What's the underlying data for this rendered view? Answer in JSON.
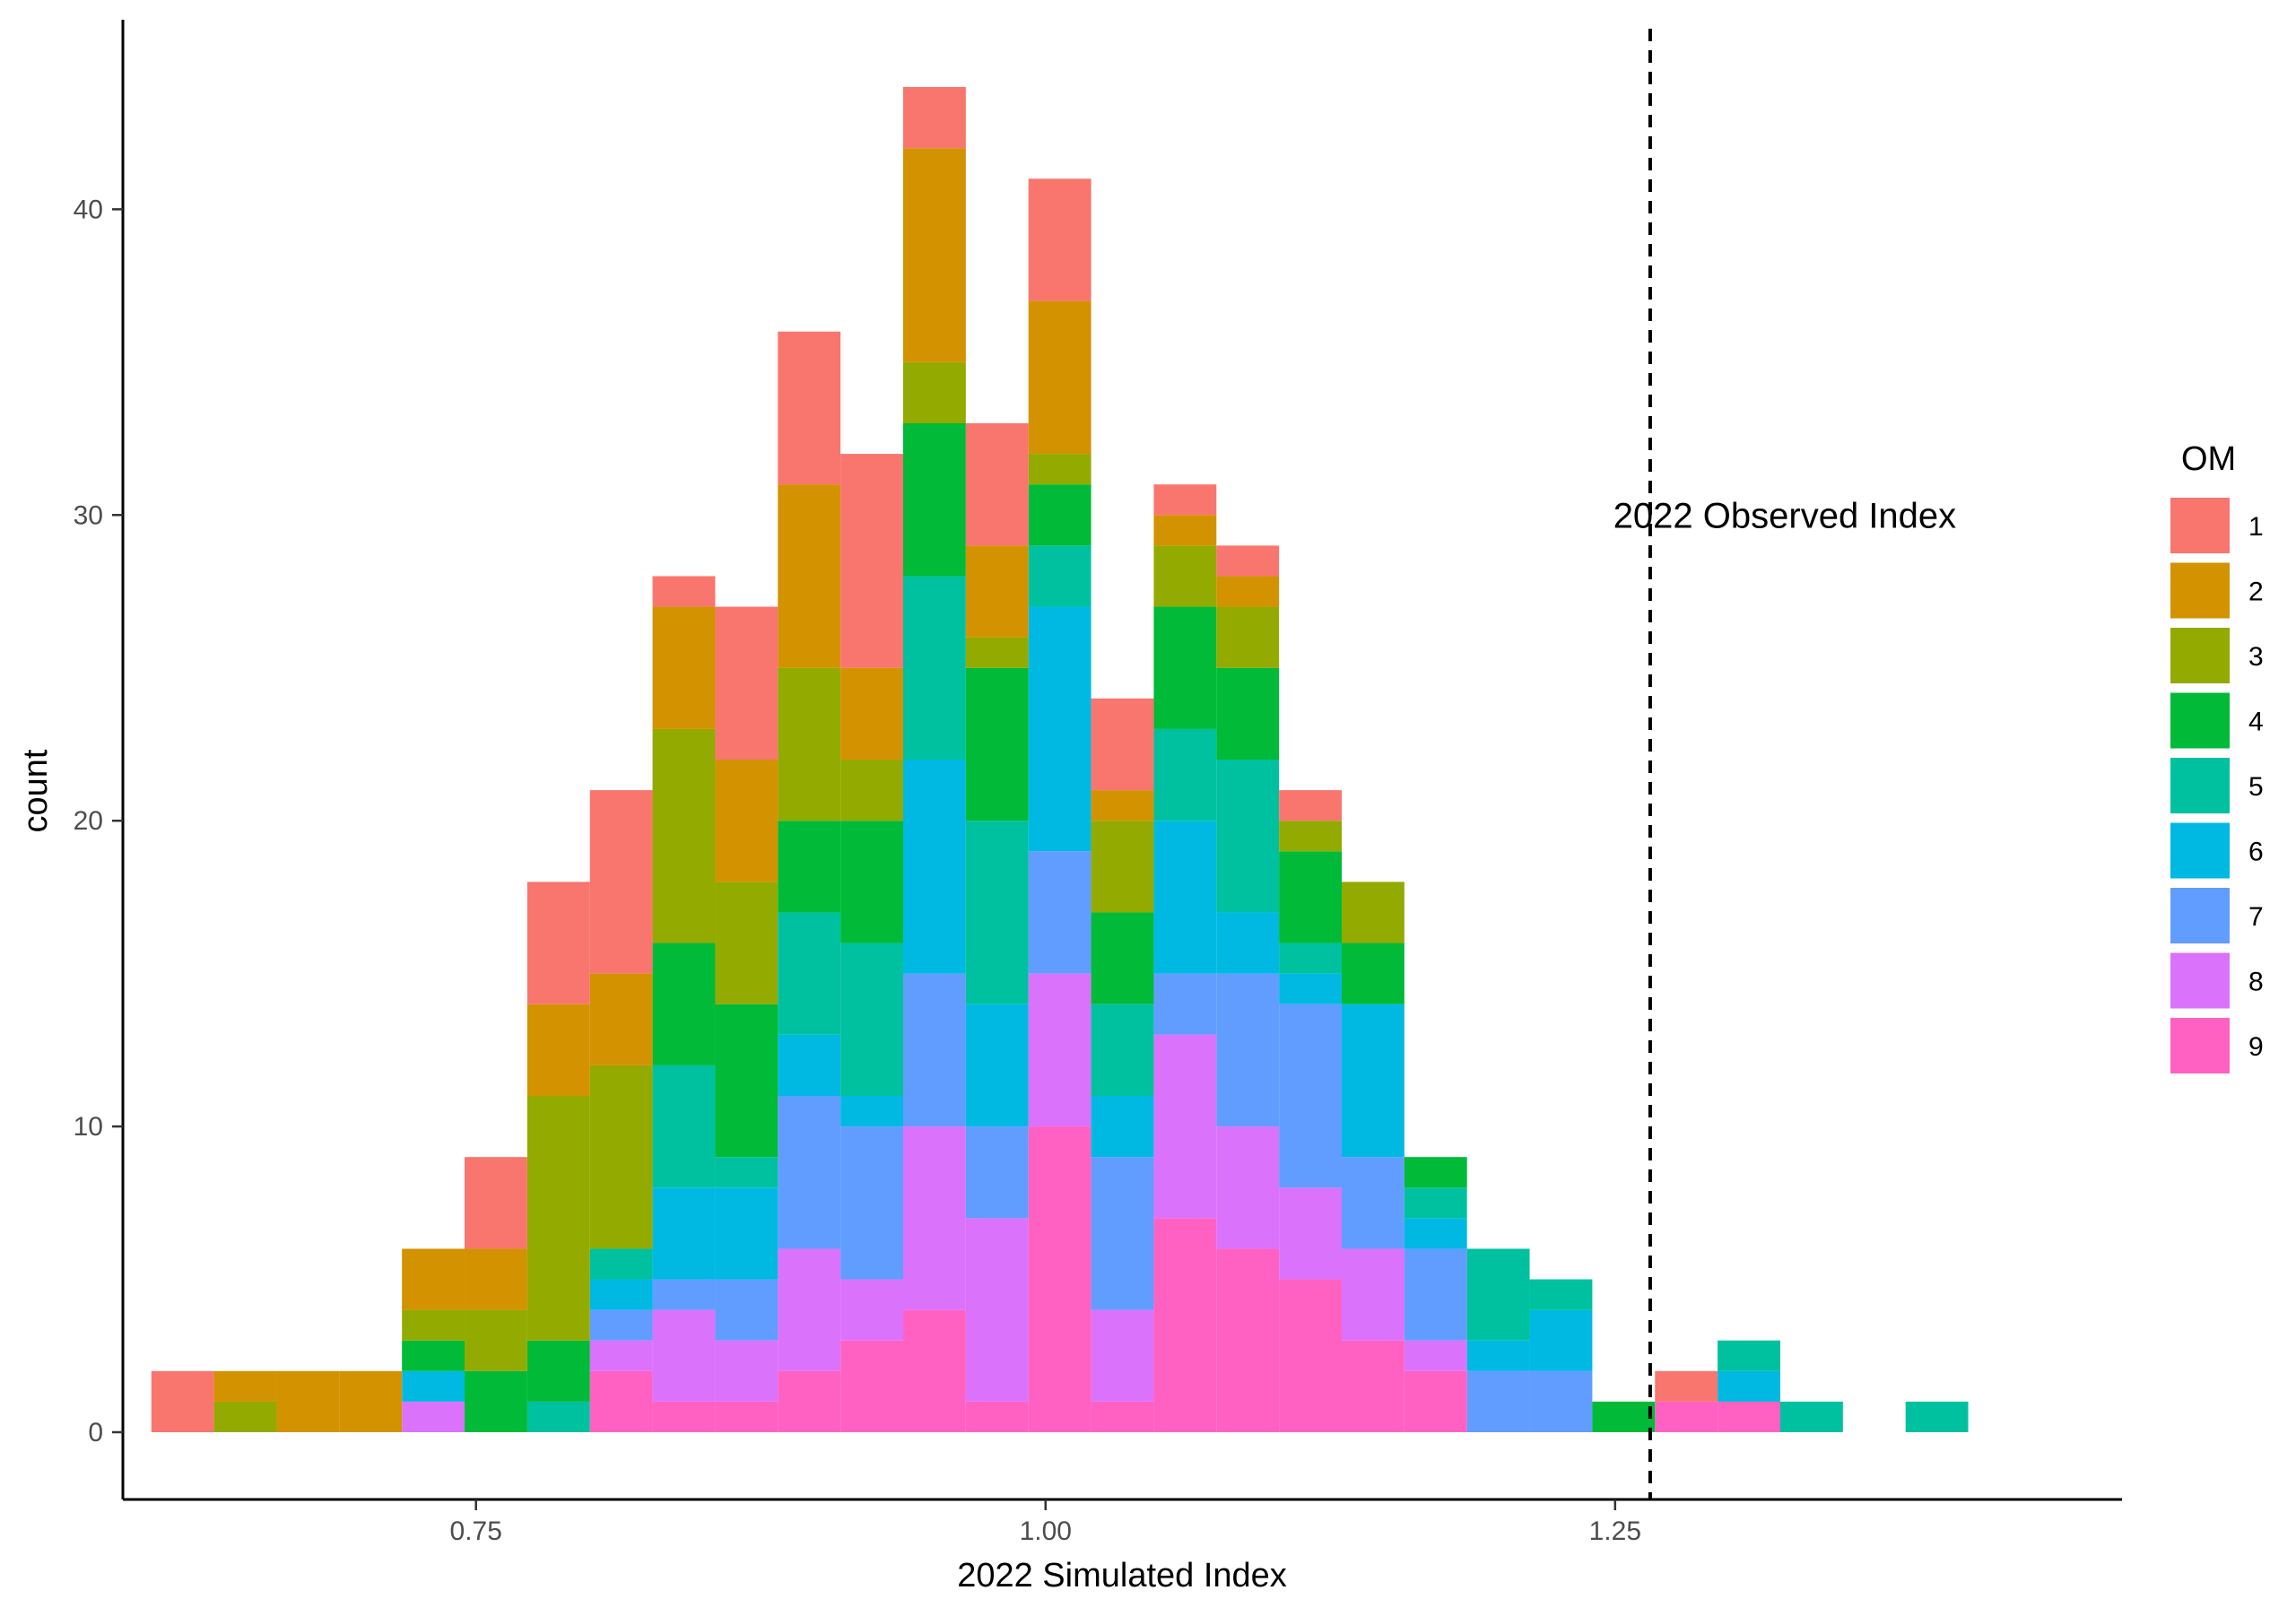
{
  "chart_data": {
    "type": "bar",
    "subtype": "stacked-histogram",
    "xlabel": "2022 Simulated Index",
    "ylabel": "count",
    "legend_title": "OM",
    "legend_position": "right",
    "grid": false,
    "xlim": [
      0.595,
      1.4725
    ],
    "ylim": [
      -2.2,
      46.2
    ],
    "x_ticks": [
      0.75,
      1.0,
      1.25
    ],
    "x_tick_labels": [
      "0.75",
      "1.00",
      "1.25"
    ],
    "y_ticks": [
      0,
      10,
      20,
      30,
      40
    ],
    "y_tick_labels": [
      "0",
      "10",
      "20",
      "30",
      "40"
    ],
    "bin_width": 0.0275,
    "bin_starts": [
      0.6075,
      0.635,
      0.6625,
      0.69,
      0.7175,
      0.745,
      0.7725,
      0.8,
      0.8275,
      0.855,
      0.8825,
      0.91,
      0.9375,
      0.965,
      0.9925,
      1.02,
      1.0475,
      1.075,
      1.1025,
      1.13,
      1.1575,
      1.185,
      1.2125,
      1.24,
      1.2675,
      1.295,
      1.3225,
      1.35,
      1.3775,
      1.405
    ],
    "series": [
      {
        "name": "9",
        "color": "#FF61C3",
        "values": [
          0,
          0,
          0,
          0,
          0,
          0,
          0,
          2,
          1,
          1,
          2,
          3,
          4,
          1,
          10,
          1,
          7,
          6,
          5,
          3,
          2,
          0,
          0,
          0,
          1,
          1,
          0,
          0,
          0,
          0
        ]
      },
      {
        "name": "8",
        "color": "#DB72FB",
        "values": [
          0,
          0,
          0,
          0,
          1,
          0,
          0,
          1,
          3,
          2,
          4,
          2,
          6,
          6,
          5,
          3,
          6,
          4,
          3,
          3,
          1,
          0,
          0,
          0,
          0,
          0,
          0,
          0,
          0,
          0
        ]
      },
      {
        "name": "7",
        "color": "#619CFF",
        "values": [
          0,
          0,
          0,
          0,
          0,
          0,
          0,
          1,
          1,
          2,
          5,
          5,
          5,
          3,
          4,
          5,
          2,
          5,
          6,
          3,
          3,
          2,
          2,
          0,
          0,
          0,
          0,
          0,
          0,
          0
        ]
      },
      {
        "name": "6",
        "color": "#00B9E3",
        "values": [
          0,
          0,
          0,
          0,
          1,
          0,
          0,
          1,
          3,
          3,
          2,
          1,
          7,
          4,
          8,
          2,
          5,
          2,
          1,
          5,
          1,
          1,
          2,
          0,
          0,
          1,
          0,
          0,
          0,
          0
        ]
      },
      {
        "name": "5",
        "color": "#00C19F",
        "values": [
          0,
          0,
          0,
          0,
          0,
          0,
          1,
          1,
          4,
          1,
          4,
          5,
          6,
          6,
          2,
          3,
          3,
          5,
          1,
          0,
          1,
          3,
          1,
          0,
          0,
          1,
          1,
          0,
          1,
          0
        ]
      },
      {
        "name": "4",
        "color": "#00BA38",
        "values": [
          0,
          0,
          0,
          0,
          1,
          2,
          2,
          0,
          4,
          5,
          3,
          4,
          5,
          5,
          2,
          3,
          4,
          3,
          3,
          2,
          1,
          0,
          0,
          1,
          0,
          0,
          0,
          0,
          0,
          0
        ]
      },
      {
        "name": "3",
        "color": "#93AA00",
        "values": [
          0,
          1,
          0,
          0,
          1,
          2,
          8,
          6,
          7,
          4,
          5,
          2,
          2,
          1,
          1,
          3,
          2,
          2,
          1,
          2,
          0,
          0,
          0,
          0,
          0,
          0,
          0,
          0,
          0,
          0
        ]
      },
      {
        "name": "2",
        "color": "#D39200",
        "values": [
          0,
          1,
          2,
          2,
          2,
          2,
          3,
          3,
          4,
          4,
          6,
          3,
          7,
          3,
          5,
          1,
          1,
          1,
          0,
          0,
          0,
          0,
          0,
          0,
          0,
          0,
          0,
          0,
          0,
          0
        ]
      },
      {
        "name": "1",
        "color": "#F8766D",
        "values": [
          2,
          0,
          0,
          0,
          0,
          3,
          4,
          6,
          1,
          5,
          5,
          7,
          2,
          4,
          4,
          3,
          1,
          1,
          1,
          0,
          0,
          0,
          0,
          0,
          1,
          0,
          0,
          0,
          0,
          0
        ]
      }
    ],
    "annotations": [
      {
        "text": "2022 Observed Index",
        "x": 1.2654,
        "line": "dashed",
        "label_y": 30
      }
    ]
  }
}
